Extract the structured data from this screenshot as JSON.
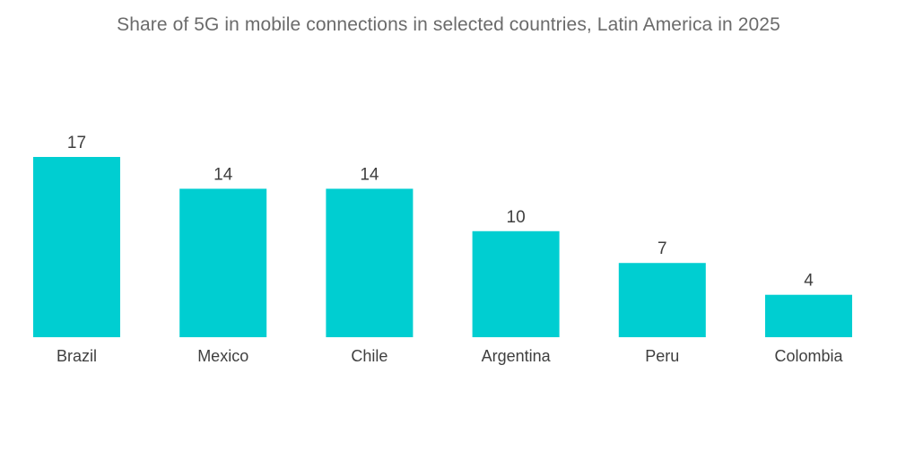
{
  "chart_data": {
    "type": "bar",
    "title": "Share of 5G in mobile connections in selected countries, Latin America in 2025",
    "categories": [
      "Brazil",
      "Mexico",
      "Chile",
      "Argentina",
      "Peru",
      "Colombia"
    ],
    "values": [
      17,
      14,
      14,
      10,
      7,
      4
    ],
    "xlabel": "",
    "ylabel": "",
    "ylim": [
      0,
      17
    ],
    "grid": false,
    "bar_color": "#00ced1",
    "data_labels": true
  }
}
